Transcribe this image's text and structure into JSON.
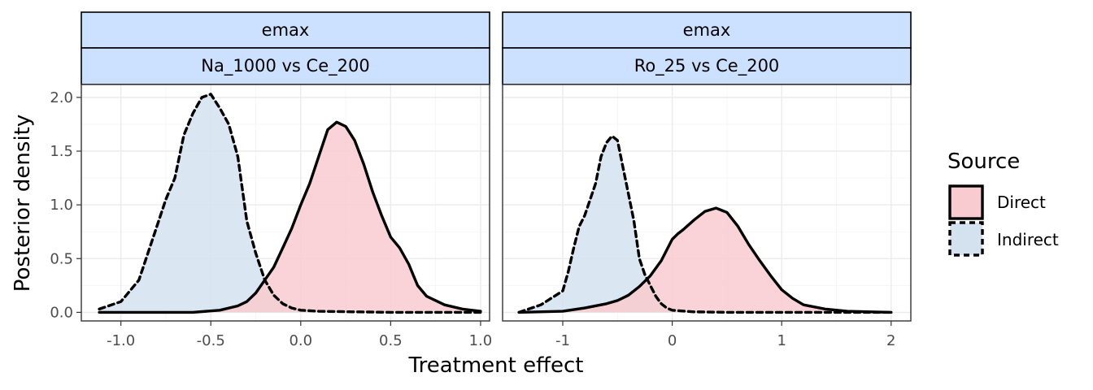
{
  "chart_data": {
    "type": "area",
    "xlabel": "Treatment effect",
    "ylabel": "Posterior density",
    "legend": {
      "title": "Source",
      "position": "right",
      "entries": [
        {
          "label": "Direct",
          "fill": "#f8cbd0",
          "line": "solid"
        },
        {
          "label": "Indirect",
          "fill": "#d3e2ee",
          "line": "dashed"
        }
      ]
    },
    "colors": {
      "strip_fill": "#cce1ff",
      "direct_fill": "#f8cbd0",
      "indirect_fill": "#d3e2ee",
      "line": "#000000"
    },
    "panels": [
      {
        "strip_top": "emax",
        "strip_bottom": "Na_1000 vs Ce_200",
        "xlim": [
          -1.22,
          1.05
        ],
        "ylim": [
          -0.08,
          2.12
        ],
        "xticks": [
          -1.0,
          -0.5,
          0.0,
          0.5,
          1.0
        ],
        "xtick_labels": [
          "-1.0",
          "-0.5",
          "0.0",
          "0.5",
          "1.0"
        ],
        "yticks": [
          0.0,
          0.5,
          1.0,
          1.5,
          2.0
        ],
        "ytick_labels": [
          "0.0",
          "0.5",
          "1.0",
          "1.5",
          "2.0"
        ],
        "series": [
          {
            "name": "Indirect",
            "x": [
              -1.12,
              -1.0,
              -0.9,
              -0.8,
              -0.75,
              -0.7,
              -0.65,
              -0.6,
              -0.55,
              -0.5,
              -0.45,
              -0.4,
              -0.35,
              -0.3,
              -0.25,
              -0.2,
              -0.15,
              -0.1,
              -0.05,
              0.0,
              0.1,
              0.3,
              0.5,
              0.7,
              1.0
            ],
            "y": [
              0.03,
              0.1,
              0.3,
              0.8,
              1.05,
              1.25,
              1.65,
              1.85,
              2.0,
              2.03,
              1.9,
              1.75,
              1.45,
              0.85,
              0.55,
              0.3,
              0.16,
              0.08,
              0.04,
              0.02,
              0.01,
              0.005,
              0.0,
              0.0,
              0.0
            ]
          },
          {
            "name": "Direct",
            "x": [
              -1.12,
              -0.8,
              -0.6,
              -0.45,
              -0.35,
              -0.3,
              -0.25,
              -0.2,
              -0.15,
              -0.1,
              -0.05,
              0.0,
              0.05,
              0.1,
              0.15,
              0.2,
              0.25,
              0.3,
              0.35,
              0.4,
              0.45,
              0.5,
              0.55,
              0.6,
              0.65,
              0.7,
              0.8,
              0.9,
              1.0
            ],
            "y": [
              0.0,
              0.0,
              0.0,
              0.02,
              0.06,
              0.1,
              0.18,
              0.3,
              0.42,
              0.6,
              0.78,
              1.0,
              1.2,
              1.45,
              1.7,
              1.77,
              1.73,
              1.6,
              1.38,
              1.12,
              0.9,
              0.7,
              0.6,
              0.45,
              0.25,
              0.15,
              0.07,
              0.03,
              0.01
            ]
          }
        ]
      },
      {
        "strip_top": "emax",
        "strip_bottom": "Ro_25 vs Ce_200",
        "xlim": [
          -1.55,
          2.18
        ],
        "ylim": [
          -0.08,
          2.12
        ],
        "xticks": [
          -1,
          0,
          1,
          2
        ],
        "xtick_labels": [
          "-1",
          "0",
          "1",
          "2"
        ],
        "yticks": [
          0.0,
          0.5,
          1.0,
          1.5,
          2.0
        ],
        "ytick_labels": [
          "0.0",
          "0.5",
          "1.0",
          "1.5",
          "2.0"
        ],
        "series": [
          {
            "name": "Indirect",
            "x": [
              -1.4,
              -1.2,
              -1.0,
              -0.95,
              -0.9,
              -0.85,
              -0.8,
              -0.75,
              -0.7,
              -0.65,
              -0.6,
              -0.55,
              -0.5,
              -0.45,
              -0.4,
              -0.35,
              -0.3,
              -0.25,
              -0.2,
              -0.15,
              -0.1,
              -0.05,
              0.0,
              0.2,
              0.5,
              1.0,
              2.0
            ],
            "y": [
              0.0,
              0.07,
              0.2,
              0.38,
              0.6,
              0.8,
              0.9,
              1.05,
              1.2,
              1.45,
              1.58,
              1.64,
              1.6,
              1.35,
              1.1,
              0.85,
              0.5,
              0.35,
              0.25,
              0.15,
              0.08,
              0.04,
              0.02,
              0.005,
              0.0,
              0.0,
              0.0
            ]
          },
          {
            "name": "Direct",
            "x": [
              -1.4,
              -1.0,
              -0.8,
              -0.6,
              -0.5,
              -0.4,
              -0.3,
              -0.2,
              -0.1,
              0.0,
              0.05,
              0.1,
              0.2,
              0.3,
              0.4,
              0.5,
              0.6,
              0.7,
              0.8,
              0.9,
              1.0,
              1.1,
              1.2,
              1.4,
              1.6,
              2.0
            ],
            "y": [
              0.0,
              0.01,
              0.04,
              0.08,
              0.11,
              0.16,
              0.24,
              0.34,
              0.48,
              0.68,
              0.73,
              0.77,
              0.86,
              0.94,
              0.97,
              0.93,
              0.8,
              0.63,
              0.48,
              0.34,
              0.21,
              0.13,
              0.07,
              0.03,
              0.01,
              0.0
            ]
          }
        ]
      }
    ]
  }
}
